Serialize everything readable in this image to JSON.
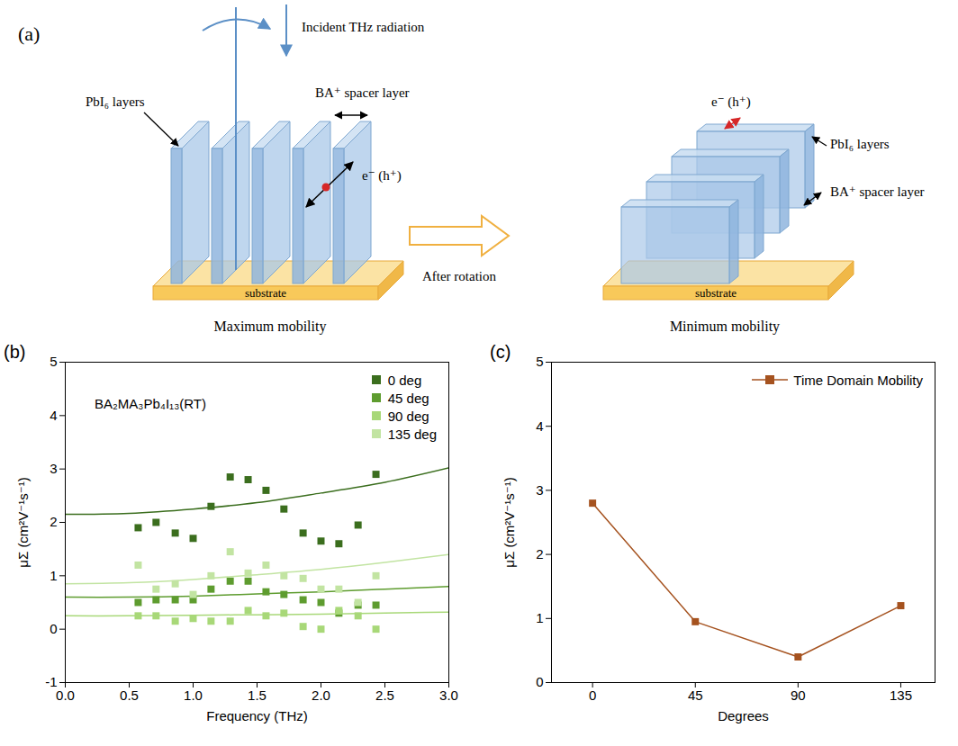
{
  "diagram": {
    "panel": "(a)",
    "incident": "Incident THz radiation",
    "transition": "After rotation",
    "left": {
      "layers_label": "PbI₆ layers",
      "spacer_label": "BA⁺ spacer layer",
      "carrier_label": "e⁻ (h⁺)",
      "substrate": "substrate",
      "caption": "Maximum mobility"
    },
    "right": {
      "layers_label": "PbI₆ layers",
      "spacer_label": "BA⁺ spacer layer",
      "carrier_label": "e⁻ (h⁺)",
      "substrate": "substrate",
      "caption": "Minimum mobility"
    }
  },
  "chart_data": [
    {
      "panel": "(b)",
      "type": "scatter",
      "x_label": "Frequency (THz)",
      "y_label": "μΣ (cm²V⁻¹s⁻¹)",
      "annotations": [
        "BA₂MA₃Pb₄I₁₃(RT)"
      ],
      "x": [
        0.57,
        0.71,
        0.86,
        1.0,
        1.14,
        1.29,
        1.43,
        1.57,
        1.71,
        1.86,
        2.0,
        2.14,
        2.29,
        2.43
      ],
      "series": [
        {
          "name": "0 deg",
          "color": "#3b6e1e",
          "marker": "square",
          "values": [
            1.9,
            2.0,
            1.8,
            1.7,
            2.3,
            2.85,
            2.8,
            2.6,
            2.25,
            1.8,
            1.65,
            1.6,
            1.95,
            2.9
          ],
          "fit": {
            "x": [
              0,
              0.5,
              1,
              1.5,
              2,
              2.5,
              3
            ],
            "values": [
              2.15,
              2.17,
              2.25,
              2.37,
              2.55,
              2.75,
              3.02
            ]
          }
        },
        {
          "name": "45 deg",
          "color": "#5e9c2f",
          "marker": "square",
          "values": [
            0.5,
            0.55,
            0.55,
            0.55,
            0.75,
            0.9,
            0.9,
            0.7,
            0.65,
            0.55,
            0.5,
            0.3,
            0.45,
            0.45
          ],
          "fit": {
            "x": [
              0,
              0.5,
              1,
              1.5,
              2,
              2.5,
              3
            ],
            "values": [
              0.6,
              0.6,
              0.62,
              0.66,
              0.7,
              0.75,
              0.8
            ]
          }
        },
        {
          "name": "90 deg",
          "color": "#a8d878",
          "marker": "square",
          "values": [
            0.25,
            0.25,
            0.15,
            0.2,
            0.15,
            0.15,
            0.35,
            0.25,
            0.3,
            0.05,
            0.0,
            0.35,
            0.25,
            0.0
          ],
          "fit": {
            "x": [
              0,
              0.5,
              1,
              1.5,
              2,
              2.5,
              3
            ],
            "values": [
              0.25,
              0.25,
              0.26,
              0.27,
              0.28,
              0.3,
              0.32
            ]
          }
        },
        {
          "name": "135 deg",
          "color": "#c2e4a2",
          "marker": "square",
          "values": [
            1.2,
            0.75,
            0.85,
            0.65,
            1.0,
            1.45,
            1.05,
            1.2,
            1.0,
            0.95,
            0.75,
            0.75,
            0.5,
            1.0
          ],
          "fit": {
            "x": [
              0,
              0.5,
              1,
              1.5,
              2,
              2.5,
              3
            ],
            "values": [
              0.85,
              0.87,
              0.93,
              1.02,
              1.12,
              1.25,
              1.4
            ]
          }
        }
      ],
      "xlim": [
        0,
        3
      ],
      "xticks": [
        {
          "value": 0,
          "label": "0.0"
        },
        0.5,
        {
          "value": 1,
          "label": "1.0"
        },
        1.5,
        {
          "value": 2,
          "label": "2.0"
        },
        2.5,
        {
          "value": 3,
          "label": "3.0"
        }
      ],
      "ylim": [
        -1,
        5
      ],
      "yticks": [
        -1,
        0,
        1,
        2,
        3,
        4,
        5
      ],
      "legend": "top-right",
      "grid": false
    },
    {
      "panel": "(c)",
      "type": "line",
      "x_label": "Degrees",
      "y_label": "μΣ (cm²V⁻¹s⁻¹)",
      "x": [
        0,
        45,
        90,
        135
      ],
      "series": [
        {
          "name": "Time Domain Mobility",
          "color": "#a5521f",
          "marker": "square",
          "values": [
            2.8,
            0.95,
            0.4,
            1.2
          ]
        }
      ],
      "xlim": [
        -18,
        150
      ],
      "xticks": [
        0,
        45,
        90,
        135
      ],
      "ylim": [
        0,
        5
      ],
      "yticks": [
        0,
        1,
        2,
        3,
        4,
        5
      ],
      "legend": "top-right",
      "grid": false
    }
  ]
}
